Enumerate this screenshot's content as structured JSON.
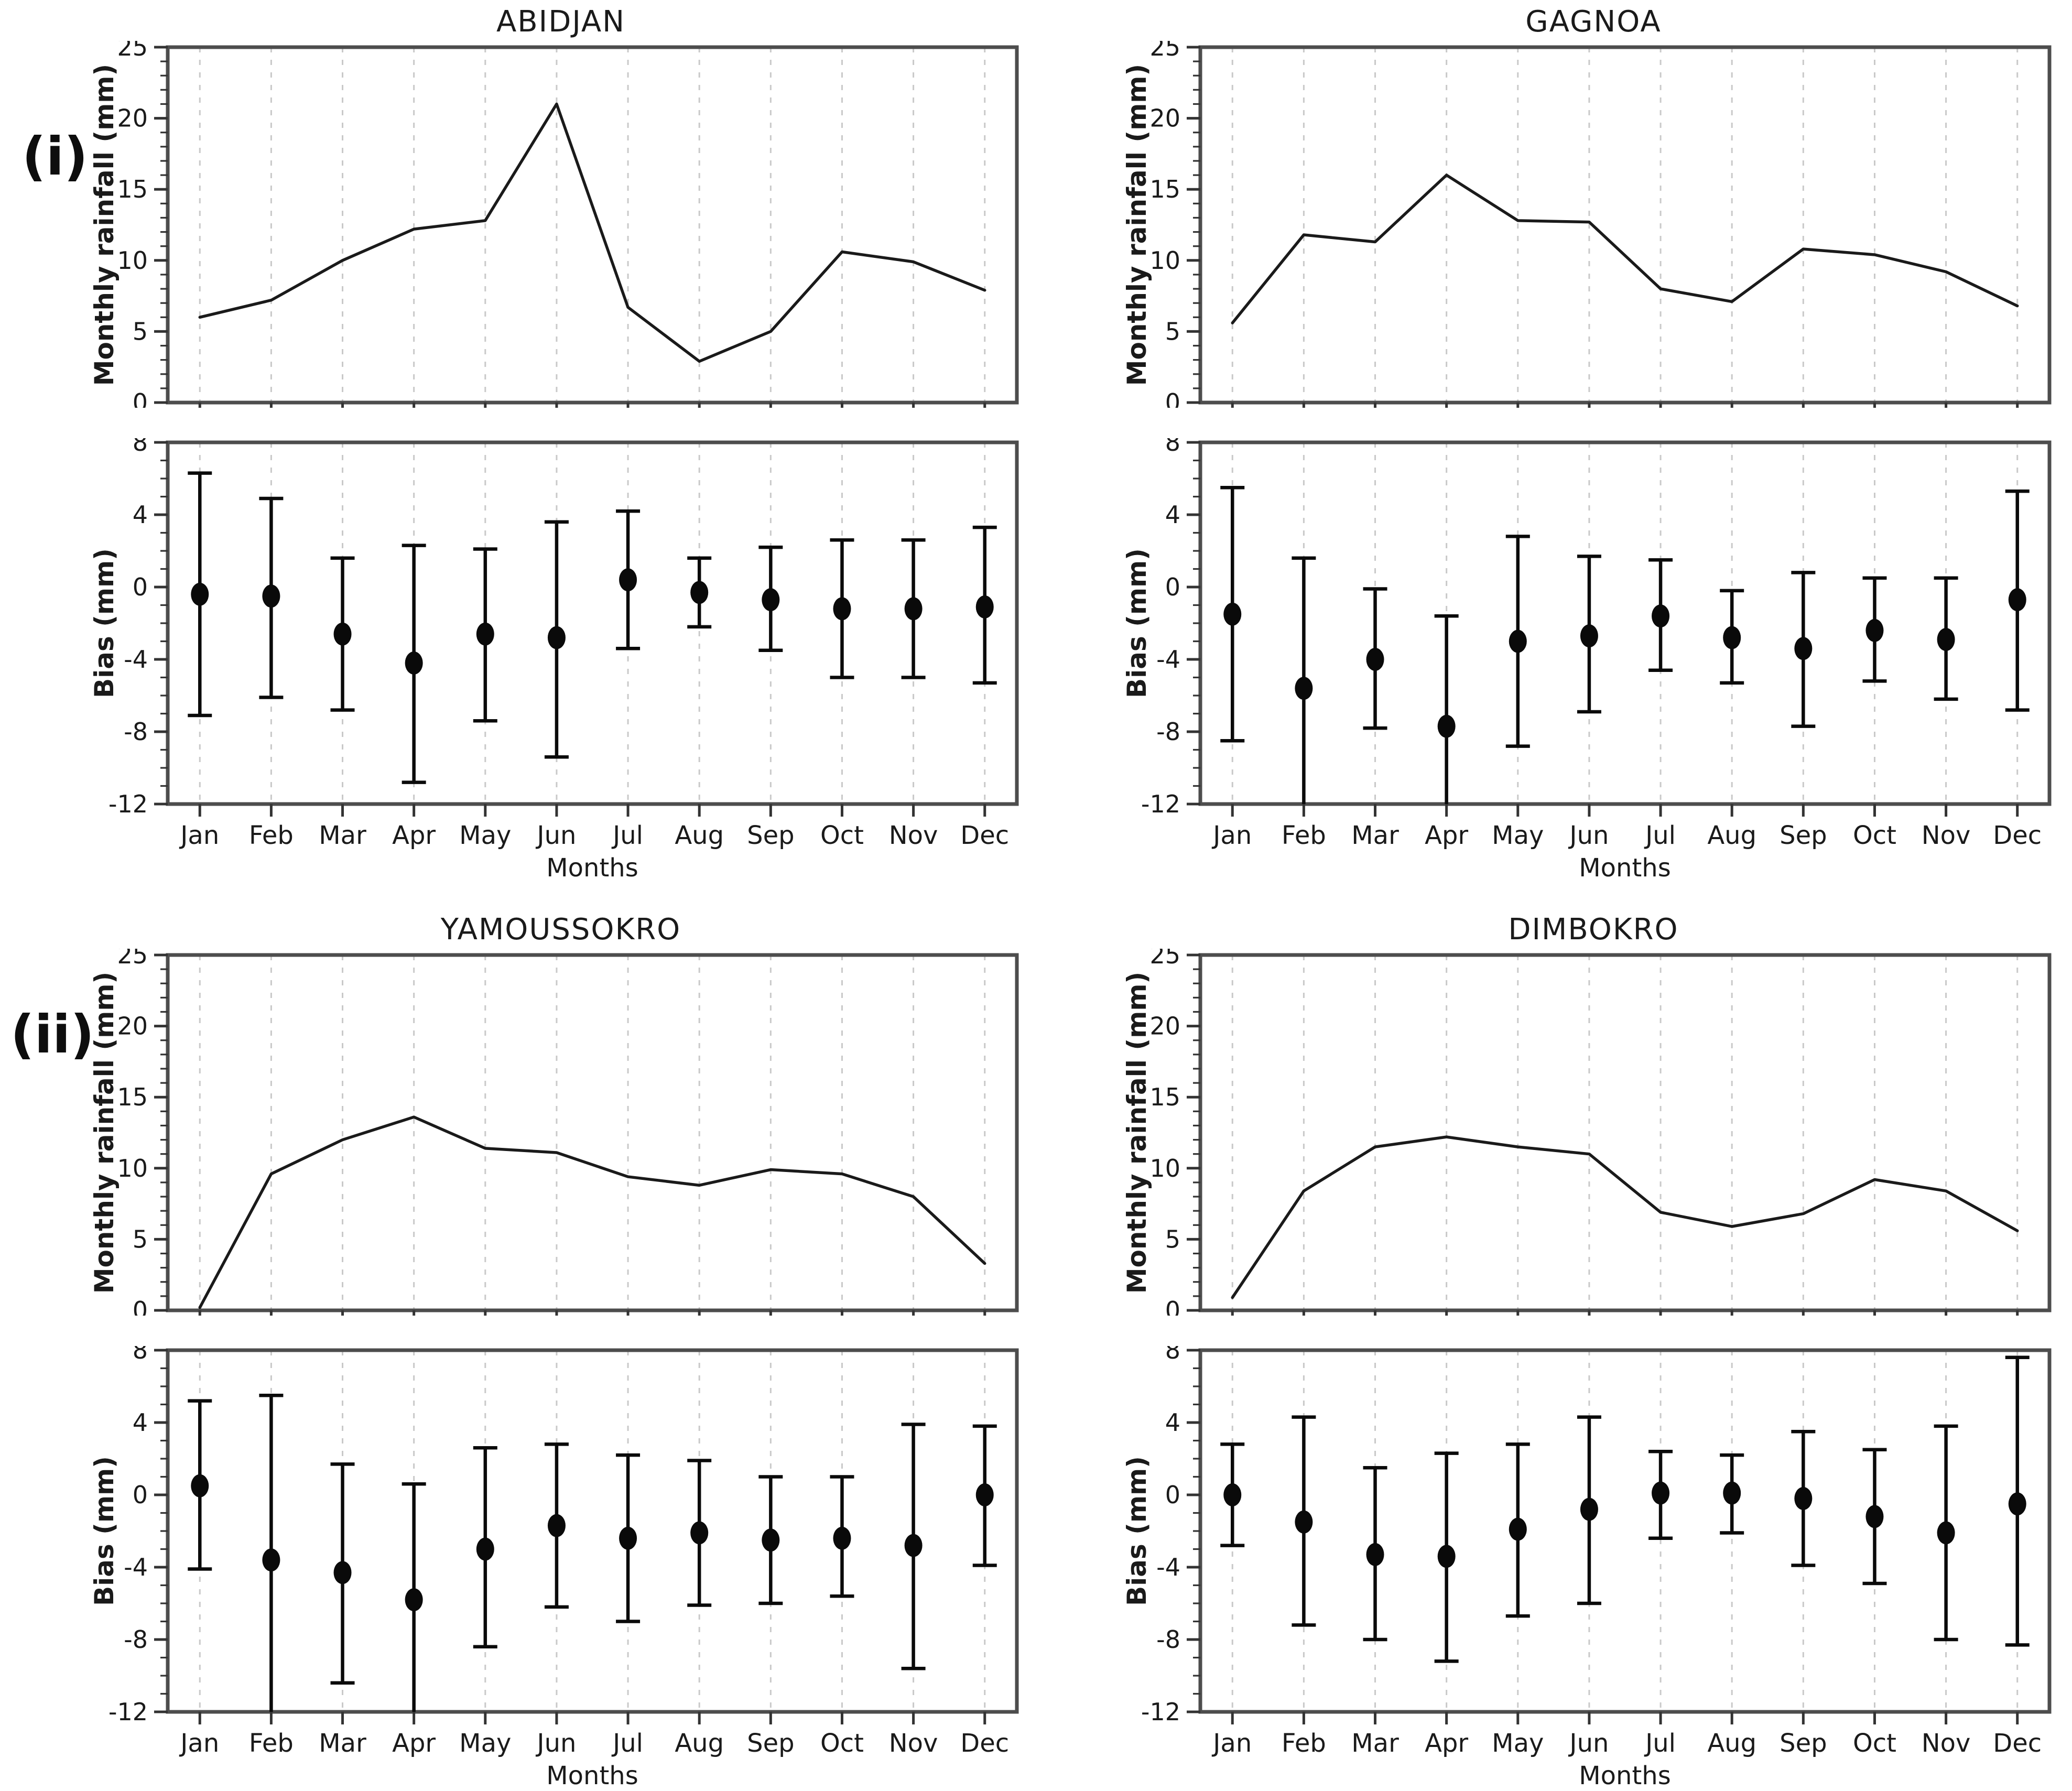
{
  "figure": {
    "row_labels": [
      "(i)",
      "(ii)"
    ],
    "colors": {
      "background": "#ffffff",
      "frame": "#4d4d4d",
      "grid": "#c9c9c9",
      "line": "#1a1a1a",
      "marker": "#0a0a0a",
      "tick": "#333333"
    }
  },
  "months": [
    "Jan",
    "Feb",
    "Mar",
    "Apr",
    "May",
    "Jun",
    "Jul",
    "Aug",
    "Sep",
    "Oct",
    "Nov",
    "Dec"
  ],
  "chart_data": [
    {
      "station": "ABIDJAN",
      "rainfall": {
        "type": "line",
        "title": "ABIDJAN",
        "ylabel": "Monthly rainfall (mm)",
        "ylim": [
          0,
          25
        ],
        "yticks": [
          0,
          5,
          10,
          15,
          20,
          25
        ],
        "grid": "vertical-dashed",
        "values": [
          6.0,
          7.2,
          10.0,
          12.2,
          12.8,
          21.0,
          6.7,
          2.9,
          5.0,
          10.6,
          9.9,
          7.9
        ]
      },
      "bias": {
        "type": "scatter",
        "ylabel": "Bias (mm)",
        "xlabel": "Months",
        "ylim": [
          -12,
          8
        ],
        "yticks": [
          -12,
          -8,
          -4,
          0,
          4,
          8
        ],
        "grid": "vertical-dashed",
        "centers": [
          -0.4,
          -0.5,
          -2.6,
          -4.2,
          -2.6,
          -2.8,
          0.4,
          -0.3,
          -0.7,
          -1.2,
          -1.2,
          -1.1
        ],
        "upper": [
          6.3,
          4.9,
          1.6,
          2.3,
          2.1,
          3.6,
          4.2,
          1.6,
          2.2,
          2.6,
          2.6,
          3.3
        ],
        "lower": [
          -7.1,
          -6.1,
          -6.8,
          -10.8,
          -7.4,
          -9.4,
          -3.4,
          -2.2,
          -3.5,
          -5.0,
          -5.0,
          -5.3
        ]
      }
    },
    {
      "station": "GAGNOA",
      "rainfall": {
        "type": "line",
        "title": "GAGNOA",
        "ylabel": "Monthly rainfall (mm)",
        "ylim": [
          0,
          25
        ],
        "yticks": [
          0,
          5,
          10,
          15,
          20,
          25
        ],
        "grid": "vertical-dashed",
        "values": [
          5.6,
          11.8,
          11.3,
          16.0,
          12.8,
          12.7,
          8.0,
          7.1,
          10.8,
          10.4,
          9.2,
          6.8
        ]
      },
      "bias": {
        "type": "scatter",
        "ylabel": "Bias (mm)",
        "xlabel": "Months",
        "ylim": [
          -12,
          8
        ],
        "yticks": [
          -12,
          -8,
          -4,
          0,
          4,
          8
        ],
        "grid": "vertical-dashed",
        "centers": [
          -1.5,
          -5.6,
          -4.0,
          -7.7,
          -3.0,
          -2.7,
          -1.6,
          -2.8,
          -3.4,
          -2.4,
          -2.9,
          -0.7
        ],
        "upper": [
          5.5,
          1.6,
          -0.1,
          -1.6,
          2.8,
          1.7,
          1.5,
          -0.2,
          0.8,
          0.5,
          0.5,
          5.3
        ],
        "lower": [
          -8.5,
          -12.6,
          -7.8,
          -12.6,
          -8.8,
          -6.9,
          -4.6,
          -5.3,
          -7.7,
          -5.2,
          -6.2,
          -6.8
        ]
      }
    },
    {
      "station": "YAMOUSSOKRO",
      "rainfall": {
        "type": "line",
        "title": "YAMOUSSOKRO",
        "ylabel": "Monthly rainfall (mm)",
        "ylim": [
          0,
          25
        ],
        "yticks": [
          0,
          5,
          10,
          15,
          20,
          25
        ],
        "grid": "vertical-dashed",
        "values": [
          0.2,
          9.6,
          12.0,
          13.6,
          11.4,
          11.1,
          9.4,
          8.8,
          9.9,
          9.6,
          8.0,
          3.3
        ]
      },
      "bias": {
        "type": "scatter",
        "ylabel": "Bias (mm)",
        "xlabel": "Months",
        "ylim": [
          -12,
          8
        ],
        "yticks": [
          -12,
          -8,
          -4,
          0,
          4,
          8
        ],
        "grid": "vertical-dashed",
        "centers": [
          0.5,
          -3.6,
          -4.3,
          -5.8,
          -3.0,
          -1.7,
          -2.4,
          -2.1,
          -2.5,
          -2.4,
          -2.8,
          0.0
        ],
        "upper": [
          5.2,
          5.5,
          1.7,
          0.6,
          2.6,
          2.8,
          2.2,
          1.9,
          1.0,
          1.0,
          3.9,
          3.8
        ],
        "lower": [
          -4.1,
          -12.6,
          -10.4,
          -12.6,
          -8.4,
          -6.2,
          -7.0,
          -6.1,
          -6.0,
          -5.6,
          -9.6,
          -3.9
        ]
      }
    },
    {
      "station": "DIMBOKRO",
      "rainfall": {
        "type": "line",
        "title": "DIMBOKRO",
        "ylabel": "Monthly rainfall (mm)",
        "ylim": [
          0,
          25
        ],
        "yticks": [
          0,
          5,
          10,
          15,
          20,
          25
        ],
        "grid": "vertical-dashed",
        "values": [
          0.9,
          8.4,
          11.5,
          12.2,
          11.5,
          11.0,
          6.9,
          5.9,
          6.8,
          9.2,
          8.4,
          5.6
        ]
      },
      "bias": {
        "type": "scatter",
        "ylabel": "Bias (mm)",
        "xlabel": "Months",
        "ylim": [
          -12,
          8
        ],
        "yticks": [
          -12,
          -8,
          -4,
          0,
          4,
          8
        ],
        "grid": "vertical-dashed",
        "centers": [
          0.0,
          -1.5,
          -3.3,
          -3.4,
          -1.9,
          -0.8,
          0.1,
          0.1,
          -0.2,
          -1.2,
          -2.1,
          -0.5
        ],
        "upper": [
          2.8,
          4.3,
          1.5,
          2.3,
          2.8,
          4.3,
          2.4,
          2.2,
          3.5,
          2.5,
          3.8,
          7.6
        ],
        "lower": [
          -2.8,
          -7.2,
          -8.0,
          -9.2,
          -6.7,
          -6.0,
          -2.4,
          -2.1,
          -3.9,
          -4.9,
          -8.0,
          -8.3
        ]
      }
    }
  ]
}
